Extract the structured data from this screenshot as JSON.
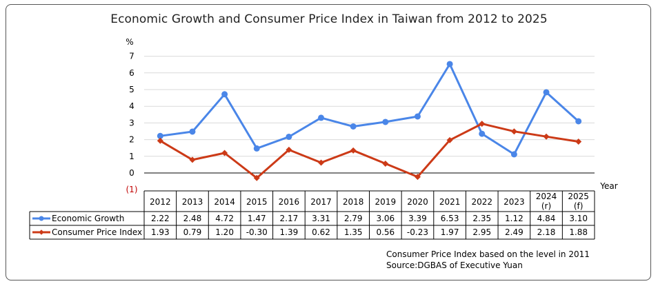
{
  "chart_data": {
    "type": "line",
    "title": "Economic Growth and Consumer Price Index in Taiwan from 2012 to 2025",
    "ylabel": "%",
    "xlabel": "Year",
    "ylim": [
      -1,
      7
    ],
    "y_tick_labels": [
      "(1)",
      "0",
      "1",
      "2",
      "3",
      "4",
      "5",
      "6",
      "7"
    ],
    "grid": true,
    "categories": [
      "2012",
      "2013",
      "2014",
      "2015",
      "2016",
      "2017",
      "2018",
      "2019",
      "2020",
      "2021",
      "2022",
      "2023",
      "2024\n(r)",
      "2025\n(f)"
    ],
    "series": [
      {
        "name": "Economic Growth",
        "color": "#4a86e8",
        "marker": "circle",
        "values": [
          2.22,
          2.48,
          4.72,
          1.47,
          2.17,
          3.31,
          2.79,
          3.06,
          3.39,
          6.53,
          2.35,
          1.12,
          4.84,
          3.1
        ],
        "labels": [
          "2.22",
          "2.48",
          "4.72",
          "1.47",
          "2.17",
          "3.31",
          "2.79",
          "3.06",
          "3.39",
          "6.53",
          "2.35",
          "1.12",
          "4.84",
          "3.10"
        ]
      },
      {
        "name": "Consumer Price Index",
        "color": "#cc3a17",
        "marker": "diamond",
        "values": [
          1.93,
          0.79,
          1.2,
          -0.3,
          1.39,
          0.62,
          1.35,
          0.56,
          -0.23,
          1.97,
          2.95,
          2.49,
          2.18,
          1.88
        ],
        "labels": [
          "1.93",
          "0.79",
          "1.20",
          "-0.30",
          "1.39",
          "0.62",
          "1.35",
          "0.56",
          "-0.23",
          "1.97",
          "2.95",
          "2.49",
          "2.18",
          "1.88"
        ]
      }
    ],
    "notes": [
      "Consumer Price Index based on the level in 2011",
      "Source:DGBAS of Executive Yuan"
    ]
  }
}
